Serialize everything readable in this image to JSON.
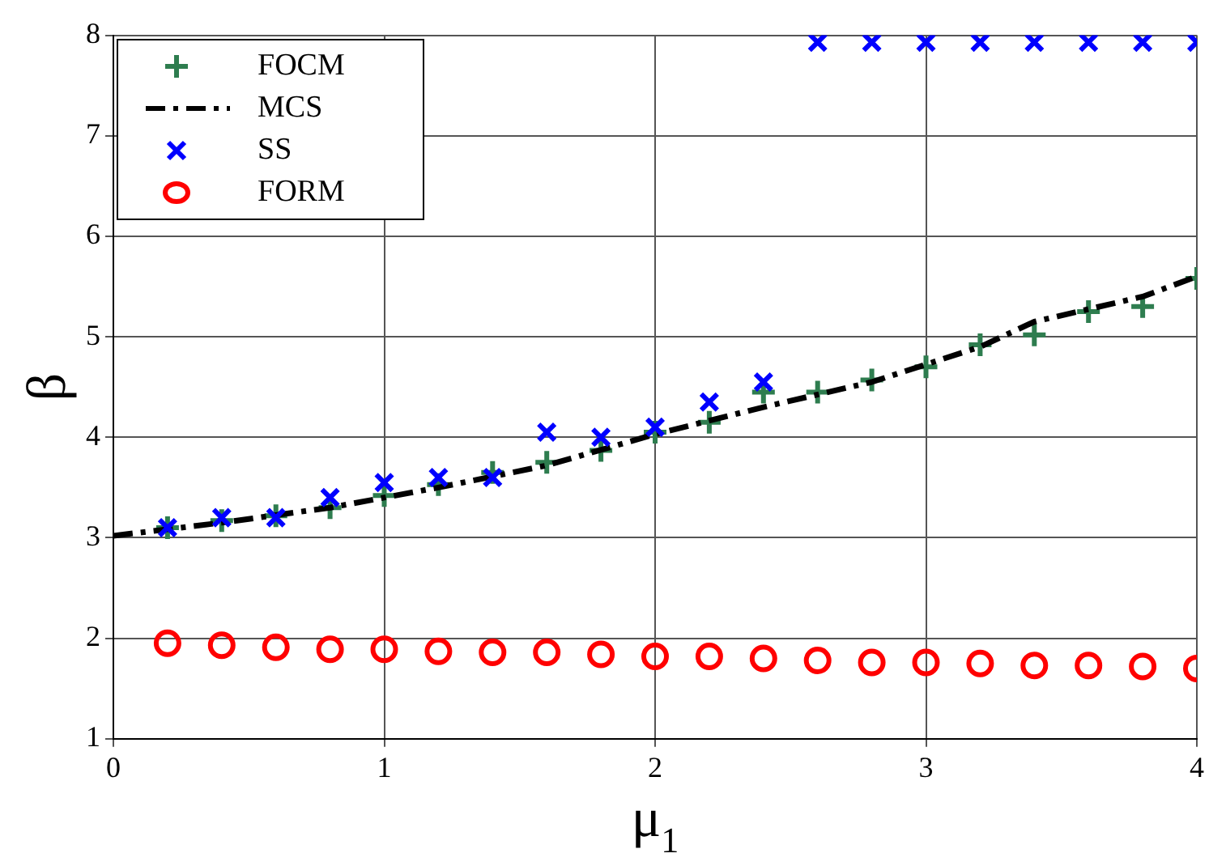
{
  "chart_data": {
    "type": "scatter",
    "xlabel": "μ$_{1}$",
    "ylabel": "β",
    "x": [
      0.2,
      0.4,
      0.6,
      0.8,
      1.0,
      1.2,
      1.4,
      1.6,
      1.8,
      2.0,
      2.2,
      2.4,
      2.6,
      2.8,
      3.0,
      3.2,
      3.4,
      3.6,
      3.8,
      4.0
    ],
    "series": [
      {
        "name": "FOCM",
        "marker": "cross",
        "color": "#2e7d4f",
        "values": [
          3.1,
          3.17,
          3.22,
          3.3,
          3.42,
          3.53,
          3.65,
          3.75,
          3.87,
          4.05,
          4.15,
          4.45,
          4.45,
          4.57,
          4.7,
          4.92,
          5.02,
          5.25,
          5.3,
          5.58
        ]
      },
      {
        "name": "MCS",
        "type": "line",
        "marker": "none",
        "line_style": "dashed",
        "color": "#000000",
        "x": [
          0,
          0.4,
          0.8,
          1.2,
          1.6,
          2.0,
          2.4,
          2.8,
          3.2,
          3.4,
          3.8,
          4.0
        ],
        "values": [
          3.02,
          3.15,
          3.3,
          3.5,
          3.72,
          4.03,
          4.3,
          4.55,
          4.9,
          5.15,
          5.4,
          5.6
        ]
      },
      {
        "name": "SS",
        "marker": "x",
        "color": "#0000ff",
        "values": [
          3.1,
          3.2,
          3.2,
          3.4,
          3.55,
          3.6,
          3.6,
          4.05,
          4.0,
          4.1,
          4.35,
          4.55,
          7.93,
          7.93,
          7.93,
          7.93,
          7.93,
          7.93,
          7.93,
          7.93
        ]
      },
      {
        "name": "FORM",
        "marker": "circle",
        "color": "#ff0000",
        "values": [
          1.95,
          1.93,
          1.91,
          1.89,
          1.89,
          1.87,
          1.86,
          1.86,
          1.84,
          1.82,
          1.82,
          1.8,
          1.78,
          1.76,
          1.76,
          1.75,
          1.73,
          1.73,
          1.72,
          1.7
        ]
      }
    ],
    "xlim": [
      0,
      4
    ],
    "xticks": [
      0,
      1,
      2,
      3,
      4
    ],
    "ylim": [
      1,
      8
    ],
    "yticks": [
      1,
      2,
      3,
      4,
      5,
      6,
      7,
      8
    ],
    "grid": true,
    "legend": "top left"
  }
}
